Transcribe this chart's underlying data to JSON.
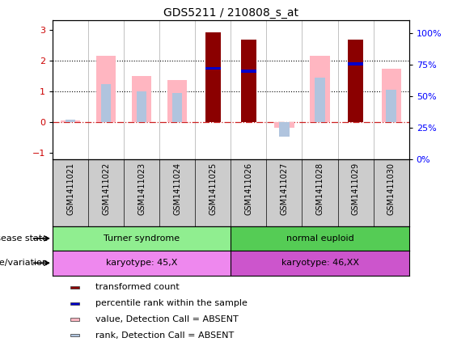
{
  "title": "GDS5211 / 210808_s_at",
  "samples": [
    "GSM1411021",
    "GSM1411022",
    "GSM1411023",
    "GSM1411024",
    "GSM1411025",
    "GSM1411026",
    "GSM1411027",
    "GSM1411028",
    "GSM1411029",
    "GSM1411030"
  ],
  "transformed_count": [
    null,
    null,
    null,
    null,
    2.93,
    2.67,
    null,
    null,
    2.68,
    null
  ],
  "percentile_rank": [
    null,
    null,
    null,
    null,
    1.75,
    1.65,
    null,
    null,
    1.9,
    null
  ],
  "value_absent": [
    0.07,
    2.17,
    1.5,
    1.38,
    null,
    null,
    -0.18,
    2.17,
    null,
    1.75
  ],
  "rank_absent": [
    0.1,
    1.25,
    1.0,
    0.95,
    null,
    null,
    -0.47,
    1.45,
    null,
    1.05
  ],
  "ylim_left": [
    -1.2,
    3.3
  ],
  "yticks_left": [
    -1,
    0,
    1,
    2,
    3
  ],
  "ylim_right": [
    0,
    110
  ],
  "yticks_right": [
    0,
    25,
    50,
    75,
    100
  ],
  "yticklabels_right": [
    "0%",
    "25%",
    "50%",
    "75%",
    "100%"
  ],
  "color_transformed": "#8B0000",
  "color_percentile": "#0000CC",
  "color_value_absent": "#FFB6C1",
  "color_rank_absent": "#B0C4DE",
  "disease_state_groups": [
    {
      "label": "Turner syndrome",
      "start": 0,
      "end": 4,
      "color": "#90EE90"
    },
    {
      "label": "normal euploid",
      "start": 5,
      "end": 9,
      "color": "#55CC55"
    }
  ],
  "genotype_groups": [
    {
      "label": "karyotype: 45,X",
      "start": 0,
      "end": 4,
      "color": "#EE88EE"
    },
    {
      "label": "karyotype: 46,XX",
      "start": 5,
      "end": 9,
      "color": "#CC55CC"
    }
  ],
  "legend_items": [
    {
      "label": "transformed count",
      "color": "#8B0000"
    },
    {
      "label": "percentile rank within the sample",
      "color": "#0000CC"
    },
    {
      "label": "value, Detection Call = ABSENT",
      "color": "#FFB6C1"
    },
    {
      "label": "rank, Detection Call = ABSENT",
      "color": "#B0C4DE"
    }
  ],
  "disease_label": "disease state",
  "geno_label": "genotype/variation"
}
